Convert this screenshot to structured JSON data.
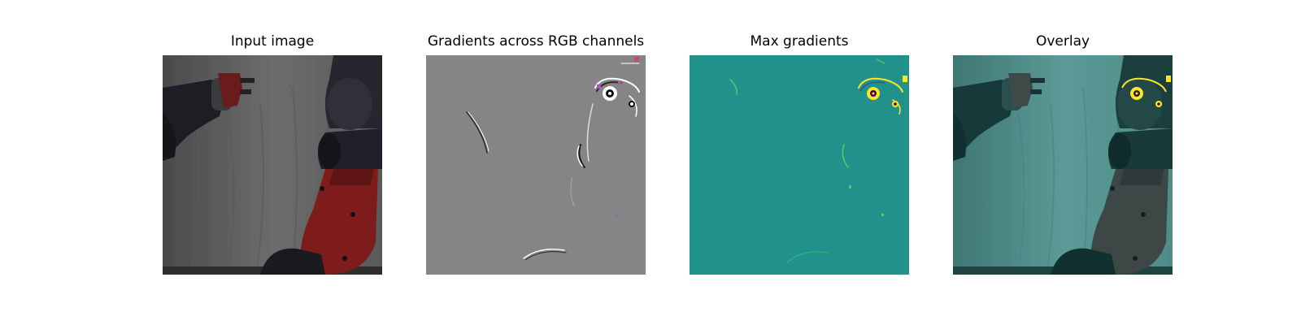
{
  "panels": [
    {
      "title": "Input image",
      "image": "robot-arm-photo"
    },
    {
      "title": "Gradients across RGB channels",
      "image": "rgb-gradient-map"
    },
    {
      "title": "Max gradients",
      "image": "max-gradient-heatmap"
    },
    {
      "title": "Overlay",
      "image": "gradient-overlay-photo"
    }
  ],
  "colors": {
    "background": "#ffffff",
    "gradient_gray": "#858585",
    "heatmap_teal": "#21918c",
    "overlay_teal": "#4c8e8a",
    "robot_red": "#8a2020",
    "robot_dark": "#2a2a33",
    "highlight_yellow": "#fde725"
  }
}
